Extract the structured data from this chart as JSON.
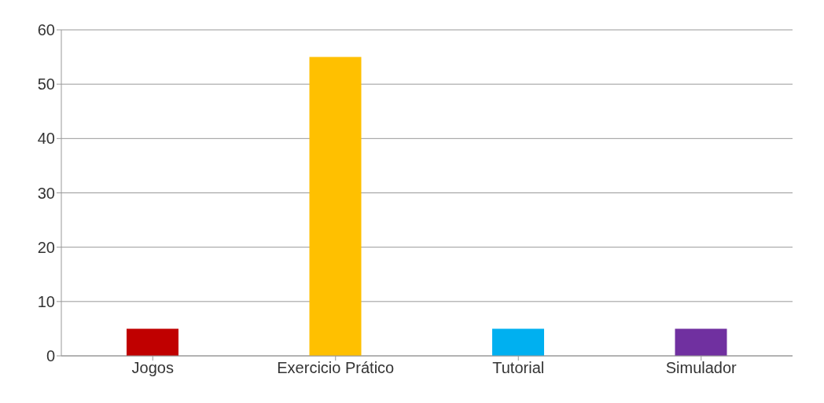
{
  "chart_data": {
    "type": "bar",
    "categories": [
      "Jogos",
      "Exercicio Prático",
      "Tutorial",
      "Simulador"
    ],
    "values": [
      5,
      55,
      5,
      5
    ],
    "colors": [
      "#c00000",
      "#ffc000",
      "#00b0f0",
      "#7030a0"
    ],
    "ylim": [
      0,
      60
    ],
    "yticks": [
      0,
      10,
      20,
      30,
      40,
      50,
      60
    ],
    "grid": "y"
  }
}
